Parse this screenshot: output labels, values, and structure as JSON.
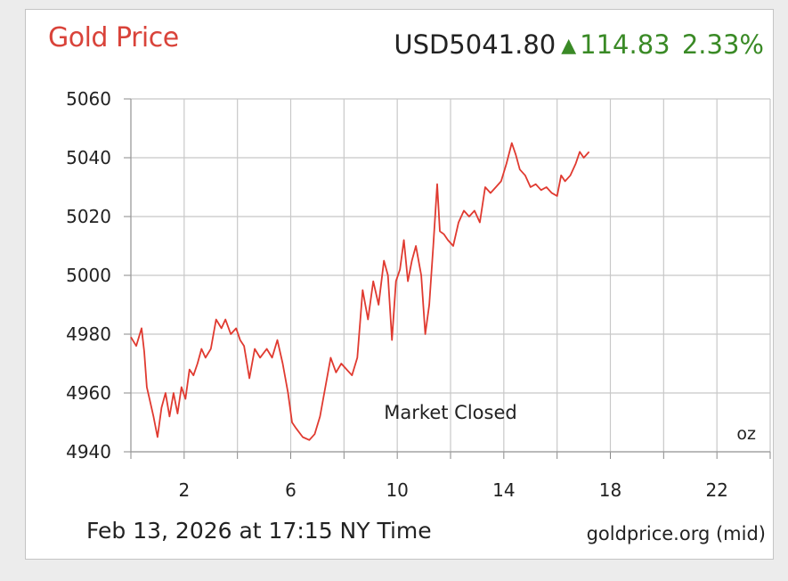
{
  "header": {
    "title": "Gold Price",
    "price": "USD5041.80",
    "change": "114.83",
    "change_pct": "2.33%",
    "direction_icon": "up-triangle-icon"
  },
  "footer": {
    "timestamp": "Feb 13, 2026 at 17:15 NY Time",
    "source": "goldprice.org (mid)"
  },
  "colors": {
    "title": "#d9433a",
    "line": "#e03a30",
    "positive": "#3a8a26",
    "grid": "#c8c8c8"
  },
  "chart_data": {
    "type": "line",
    "annotation": "Market Closed",
    "unit": "oz",
    "x_ticks": [
      2,
      6,
      10,
      14,
      18,
      22
    ],
    "xlim": [
      0,
      24
    ],
    "y_ticks": [
      4940,
      4960,
      4980,
      5000,
      5020,
      5040,
      5060
    ],
    "ylim": [
      4940,
      5060
    ],
    "grid": true,
    "series": [
      {
        "x": [
          0.0,
          0.2,
          0.4,
          0.5,
          0.6,
          0.7,
          0.85,
          1.0,
          1.15,
          1.3,
          1.45,
          1.6,
          1.75,
          1.9,
          2.05,
          2.2,
          2.35,
          2.5,
          2.65,
          2.8,
          3.0,
          3.2,
          3.4,
          3.55,
          3.75,
          3.95,
          4.1,
          4.25,
          4.45,
          4.65,
          4.85,
          5.1,
          5.3,
          5.5,
          5.7,
          5.9,
          6.05,
          6.2,
          6.45,
          6.7,
          6.9,
          7.1,
          7.3,
          7.5,
          7.7,
          7.9,
          8.1,
          8.3,
          8.5,
          8.7,
          8.9,
          9.1,
          9.3,
          9.5,
          9.65,
          9.8,
          9.95,
          10.1,
          10.25,
          10.4,
          10.55,
          10.7,
          10.9,
          11.05,
          11.2,
          11.35,
          11.5,
          11.6,
          11.75,
          11.9,
          12.1,
          12.3,
          12.5,
          12.7,
          12.9,
          13.1,
          13.3,
          13.5,
          13.7,
          13.9,
          14.1,
          14.3,
          14.45,
          14.6,
          14.8,
          15.0,
          15.2,
          15.4,
          15.6,
          15.8,
          16.0,
          16.15,
          16.3,
          16.5,
          16.7,
          16.85,
          17.0,
          17.2
        ],
        "values": [
          4979,
          4976,
          4982,
          4974,
          4962,
          4958,
          4952,
          4945,
          4955,
          4960,
          4952,
          4960,
          4953,
          4962,
          4958,
          4968,
          4966,
          4970,
          4975,
          4972,
          4975,
          4985,
          4982,
          4985,
          4980,
          4982,
          4978,
          4976,
          4965,
          4975,
          4972,
          4975,
          4972,
          4978,
          4970,
          4960,
          4950,
          4948,
          4945,
          4944,
          4946,
          4952,
          4962,
          4972,
          4967,
          4970,
          4968,
          4966,
          4972,
          4995,
          4985,
          4998,
          4990,
          5005,
          5000,
          4978,
          4998,
          5002,
          5012,
          4998,
          5005,
          5010,
          5000,
          4980,
          4990,
          5010,
          5031,
          5015,
          5014,
          5012,
          5010,
          5018,
          5022,
          5020,
          5022,
          5018,
          5030,
          5028,
          5030,
          5032,
          5038,
          5045,
          5041,
          5036,
          5034,
          5030,
          5031,
          5029,
          5030,
          5028,
          5027,
          5034,
          5032,
          5034,
          5038,
          5042,
          5040,
          5042
        ]
      }
    ]
  }
}
